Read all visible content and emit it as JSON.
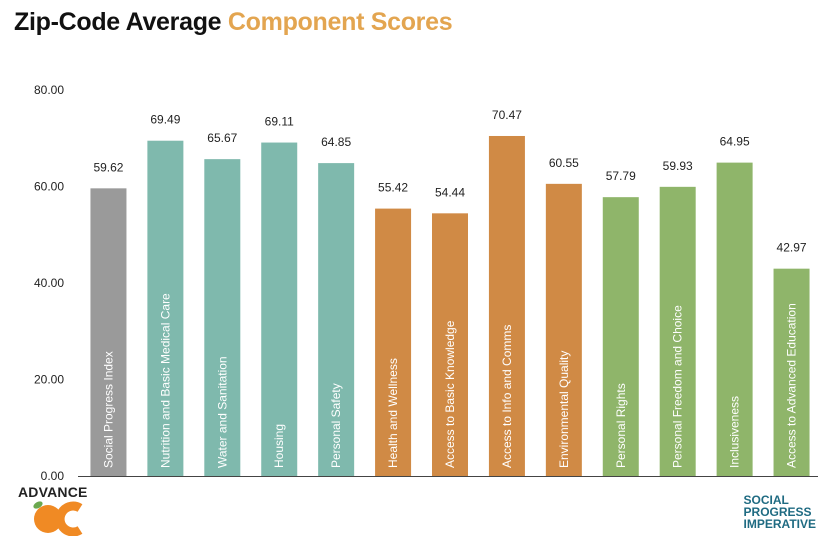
{
  "title": {
    "part1": "Zip-Code Average ",
    "part2": "Component Scores",
    "accent_color": "#e3a550"
  },
  "chart_data": {
    "type": "bar",
    "title": "Zip-Code Average Component Scores",
    "ylim": [
      0,
      80
    ],
    "yticks": [
      "0.00",
      "20.00",
      "40.00",
      "60.00",
      "80.00"
    ],
    "ytick_values": [
      0,
      20,
      40,
      60,
      80
    ],
    "grid": false,
    "categories": [
      "Social Progress Index",
      "Nutrition and Basic Medical Care",
      "Water and Sanitation",
      "Housing",
      "Personal Safety",
      "Health and Wellness",
      "Access to Basic Knowledge",
      "Access to Info and Comms",
      "Environmental Quality",
      "Personal Rights",
      "Personal Freedom and Choice",
      "Inclusiveness",
      "Access to Advanced Education"
    ],
    "values": [
      59.62,
      69.49,
      65.67,
      69.11,
      64.85,
      55.42,
      54.44,
      70.47,
      60.55,
      57.79,
      59.93,
      64.95,
      42.97
    ],
    "value_labels": [
      "59.62",
      "69.49",
      "65.67",
      "69.11",
      "64.85",
      "55.42",
      "54.44",
      "70.47",
      "60.55",
      "57.79",
      "59.93",
      "64.95",
      "42.97"
    ],
    "colors": [
      "#9a9a9a",
      "#7fb9ad",
      "#7fb9ad",
      "#7fb9ad",
      "#7fb9ad",
      "#d08a45",
      "#d08a45",
      "#d08a45",
      "#d08a45",
      "#8fb56a",
      "#8fb56a",
      "#8fb56a",
      "#8fb56a"
    ]
  },
  "logos": {
    "left": "ADVANCE",
    "right": [
      "SOCIAL",
      "PROGRESS",
      "IMPERATIVE"
    ]
  }
}
